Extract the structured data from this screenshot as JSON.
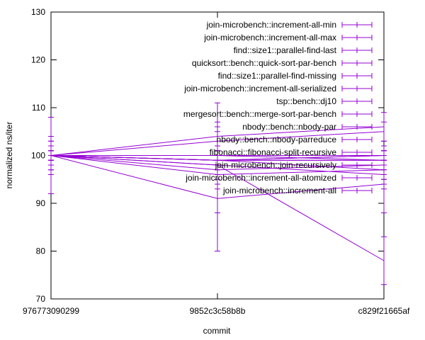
{
  "chart_data": {
    "type": "line",
    "title": "",
    "xlabel": "commit",
    "ylabel": "normalized ns/iter",
    "categories": [
      "976773090299",
      "9852c3c58b8b",
      "c829f21665af"
    ],
    "ylim": [
      70,
      130
    ],
    "yticks": [
      70,
      80,
      90,
      100,
      110,
      120,
      130
    ],
    "grid": false,
    "legend_position": "top-right",
    "series_color": "#9400d3",
    "series": [
      {
        "name": "join-microbench::increment-all-min",
        "values": [
          100,
          96,
          97
        ],
        "err": [
          [
            100,
            100
          ],
          [
            93,
            100
          ],
          [
            95,
            99
          ]
        ]
      },
      {
        "name": "join-microbench::increment-all-max",
        "values": [
          100,
          99,
          100
        ],
        "err": [
          [
            99,
            101
          ],
          [
            96,
            102
          ],
          [
            98,
            102
          ]
        ]
      },
      {
        "name": "find::size1::parallel-find-last",
        "values": [
          100,
          99,
          97
        ],
        "err": [
          [
            99,
            101
          ],
          [
            97,
            101
          ],
          [
            95,
            99
          ]
        ]
      },
      {
        "name": "quicksort::bench::quick-sort-par-bench",
        "values": [
          100,
          98,
          96
        ],
        "err": [
          [
            97,
            103
          ],
          [
            95,
            101
          ],
          [
            93,
            99
          ]
        ]
      },
      {
        "name": "find::size1::parallel-find-missing",
        "values": [
          100,
          99,
          100
        ],
        "err": [
          [
            99,
            101
          ],
          [
            98,
            100
          ],
          [
            99,
            101
          ]
        ]
      },
      {
        "name": "join-microbench::increment-all-serialized",
        "values": [
          100,
          100,
          100
        ],
        "err": [
          [
            100,
            100
          ],
          [
            100,
            100
          ],
          [
            99,
            101
          ]
        ]
      },
      {
        "name": "tsp::bench::dj10",
        "values": [
          100,
          98,
          78
        ],
        "err": [
          [
            96,
            104
          ],
          [
            94,
            102
          ],
          [
            73,
            83
          ]
        ]
      },
      {
        "name": "mergesort::bench::merge-sort-par-bench",
        "values": [
          100,
          103,
          105
        ],
        "err": [
          [
            99,
            101
          ],
          [
            101,
            105
          ],
          [
            103,
            107
          ]
        ]
      },
      {
        "name": "nbody::bench::nbody-par",
        "values": [
          100,
          104,
          106
        ],
        "err": [
          [
            98,
            102
          ],
          [
            101,
            107
          ],
          [
            103,
            109
          ]
        ]
      },
      {
        "name": "nbody::bench::nbody-parreduce",
        "values": [
          100,
          99,
          99
        ],
        "err": [
          [
            97,
            103
          ],
          [
            96,
            102
          ],
          [
            96,
            102
          ]
        ]
      },
      {
        "name": "fibonacci::fibonacci-split-recursive",
        "values": [
          100,
          100,
          99
        ],
        "err": [
          [
            100,
            100
          ],
          [
            98,
            102
          ],
          [
            97,
            101
          ]
        ]
      },
      {
        "name": "join-microbench::join-recursively",
        "values": [
          100,
          97,
          98
        ],
        "err": [
          [
            99,
            101
          ],
          [
            88,
            106
          ],
          [
            94,
            102
          ]
        ]
      },
      {
        "name": "join-microbench::increment-all-atomized",
        "values": [
          100,
          91,
          94
        ],
        "err": [
          [
            92,
            108
          ],
          [
            80,
            111
          ],
          [
            88,
            100
          ]
        ]
      },
      {
        "name": "join-microbench::increment-all",
        "values": [
          100,
          99,
          99
        ],
        "err": [
          [
            99,
            101
          ],
          [
            97,
            101
          ],
          [
            97,
            101
          ]
        ]
      }
    ]
  }
}
